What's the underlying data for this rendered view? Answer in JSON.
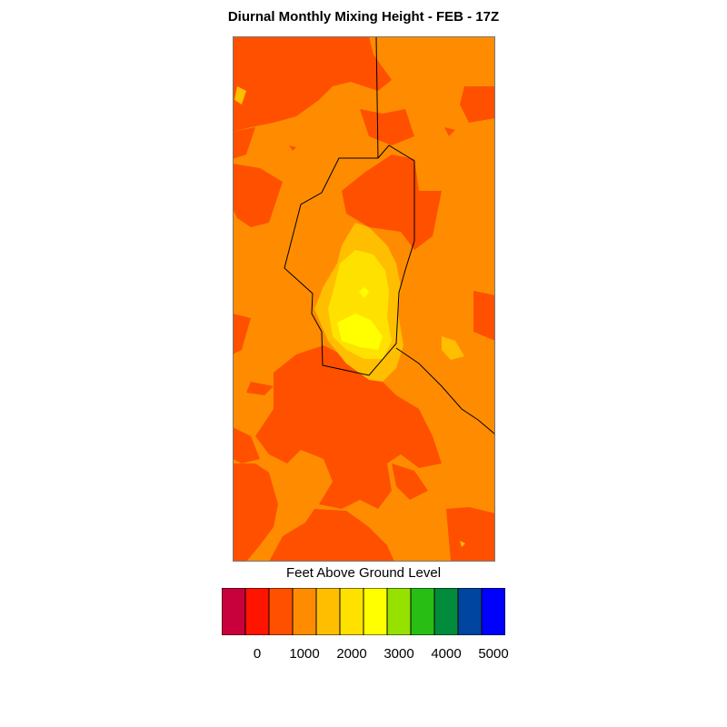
{
  "title": "Diurnal Monthly Mixing Height - FEB - 17Z",
  "legend": {
    "title": "Feet Above Ground Level",
    "colors": [
      "#c8003c",
      "#ff1400",
      "#ff5000",
      "#ff8c00",
      "#ffbe00",
      "#ffe100",
      "#ffff00",
      "#96e100",
      "#28be14",
      "#008c3c",
      "#0046a0",
      "#0000ff"
    ],
    "ticks": [
      {
        "label": "0"
      },
      {
        "label": "1000"
      },
      {
        "label": "2000"
      },
      {
        "label": "3000"
      },
      {
        "label": "4000"
      },
      {
        "label": "5000"
      }
    ]
  },
  "map": {
    "colors": {
      "base": "#ff8c00",
      "low": "#ff5000",
      "mid": "#ffbe00",
      "high": "#ffe100",
      "peak": "#ffff00"
    }
  }
}
